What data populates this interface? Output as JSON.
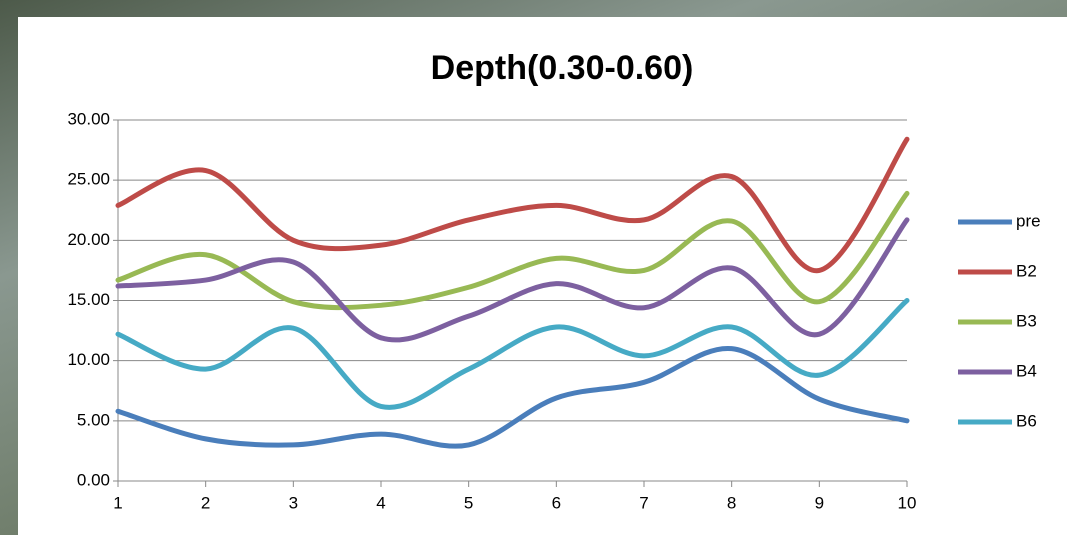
{
  "chart_data": {
    "type": "line",
    "title": "Depth(0.30-0.60)",
    "x": [
      1,
      2,
      3,
      4,
      5,
      6,
      7,
      8,
      9,
      10
    ],
    "xlim": [
      1,
      10
    ],
    "xticks": [
      1,
      2,
      3,
      4,
      5,
      6,
      7,
      8,
      9,
      10
    ],
    "ylim": [
      0,
      30
    ],
    "yticks": [
      {
        "value": 0,
        "label": "0.00"
      },
      {
        "value": 5,
        "label": "5.00"
      },
      {
        "value": 10,
        "label": "10.00"
      },
      {
        "value": 15,
        "label": "15.00"
      },
      {
        "value": 20,
        "label": "20.00"
      },
      {
        "value": 25,
        "label": "25.00"
      },
      {
        "value": 30,
        "label": "30.00"
      }
    ],
    "grid": true,
    "smooth": true,
    "legend": "right",
    "series": [
      {
        "name": "pre",
        "color": "#4a7ebb",
        "values": [
          5.8,
          3.5,
          3.0,
          3.9,
          3.0,
          6.9,
          8.2,
          11.0,
          6.8,
          5.0
        ]
      },
      {
        "name": "B2",
        "color": "#be4b48",
        "values": [
          22.9,
          25.8,
          20.0,
          19.6,
          21.7,
          22.9,
          21.7,
          25.3,
          17.5,
          28.4
        ]
      },
      {
        "name": "B3",
        "color": "#98b954",
        "values": [
          16.7,
          18.8,
          14.9,
          14.6,
          16.1,
          18.5,
          17.5,
          21.6,
          14.9,
          23.9
        ]
      },
      {
        "name": "B4",
        "color": "#7d60a0",
        "values": [
          16.2,
          16.7,
          18.2,
          11.9,
          13.7,
          16.4,
          14.4,
          17.7,
          12.2,
          21.7
        ]
      },
      {
        "name": "B6",
        "color": "#46aac5",
        "values": [
          12.2,
          9.3,
          12.7,
          6.2,
          9.3,
          12.8,
          10.4,
          12.8,
          8.8,
          15.0
        ]
      }
    ]
  }
}
